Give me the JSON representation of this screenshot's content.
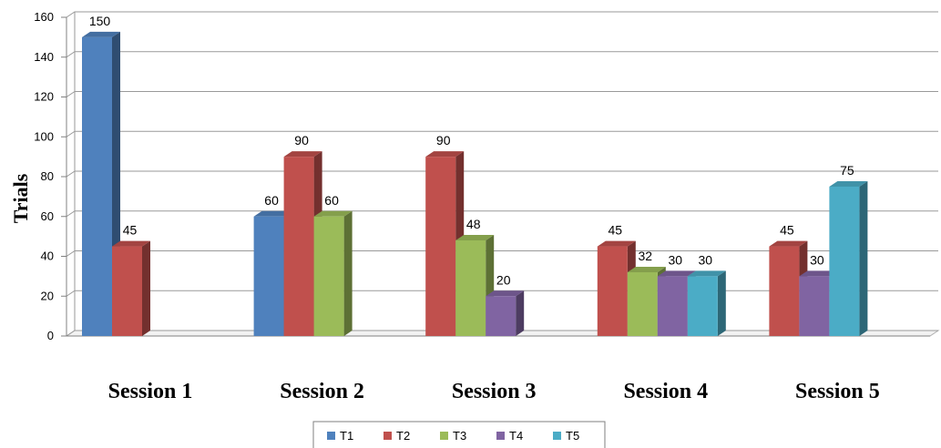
{
  "chart_data": {
    "type": "bar",
    "categories": [
      "Session 1",
      "Session 2",
      "Session 3",
      "Session 4",
      "Session 5"
    ],
    "series": [
      {
        "name": "T1",
        "color": "#4F81BD",
        "values": [
          150,
          60,
          null,
          null,
          null
        ]
      },
      {
        "name": "T2",
        "color": "#C0504D",
        "values": [
          45,
          90,
          90,
          45,
          45
        ]
      },
      {
        "name": "T3",
        "color": "#9BBB59",
        "values": [
          null,
          60,
          48,
          32,
          null
        ]
      },
      {
        "name": "T4",
        "color": "#8064A2",
        "values": [
          null,
          null,
          20,
          30,
          30
        ]
      },
      {
        "name": "T5",
        "color": "#4BACC6",
        "values": [
          null,
          null,
          null,
          30,
          75
        ]
      }
    ],
    "ylabel": "Trials",
    "ylim": [
      0,
      160
    ],
    "yticks": [
      0,
      20,
      40,
      60,
      80,
      100,
      120,
      140,
      160
    ],
    "grid": true,
    "legend_position": "bottom",
    "data_labels": true,
    "style": "3d-column"
  }
}
